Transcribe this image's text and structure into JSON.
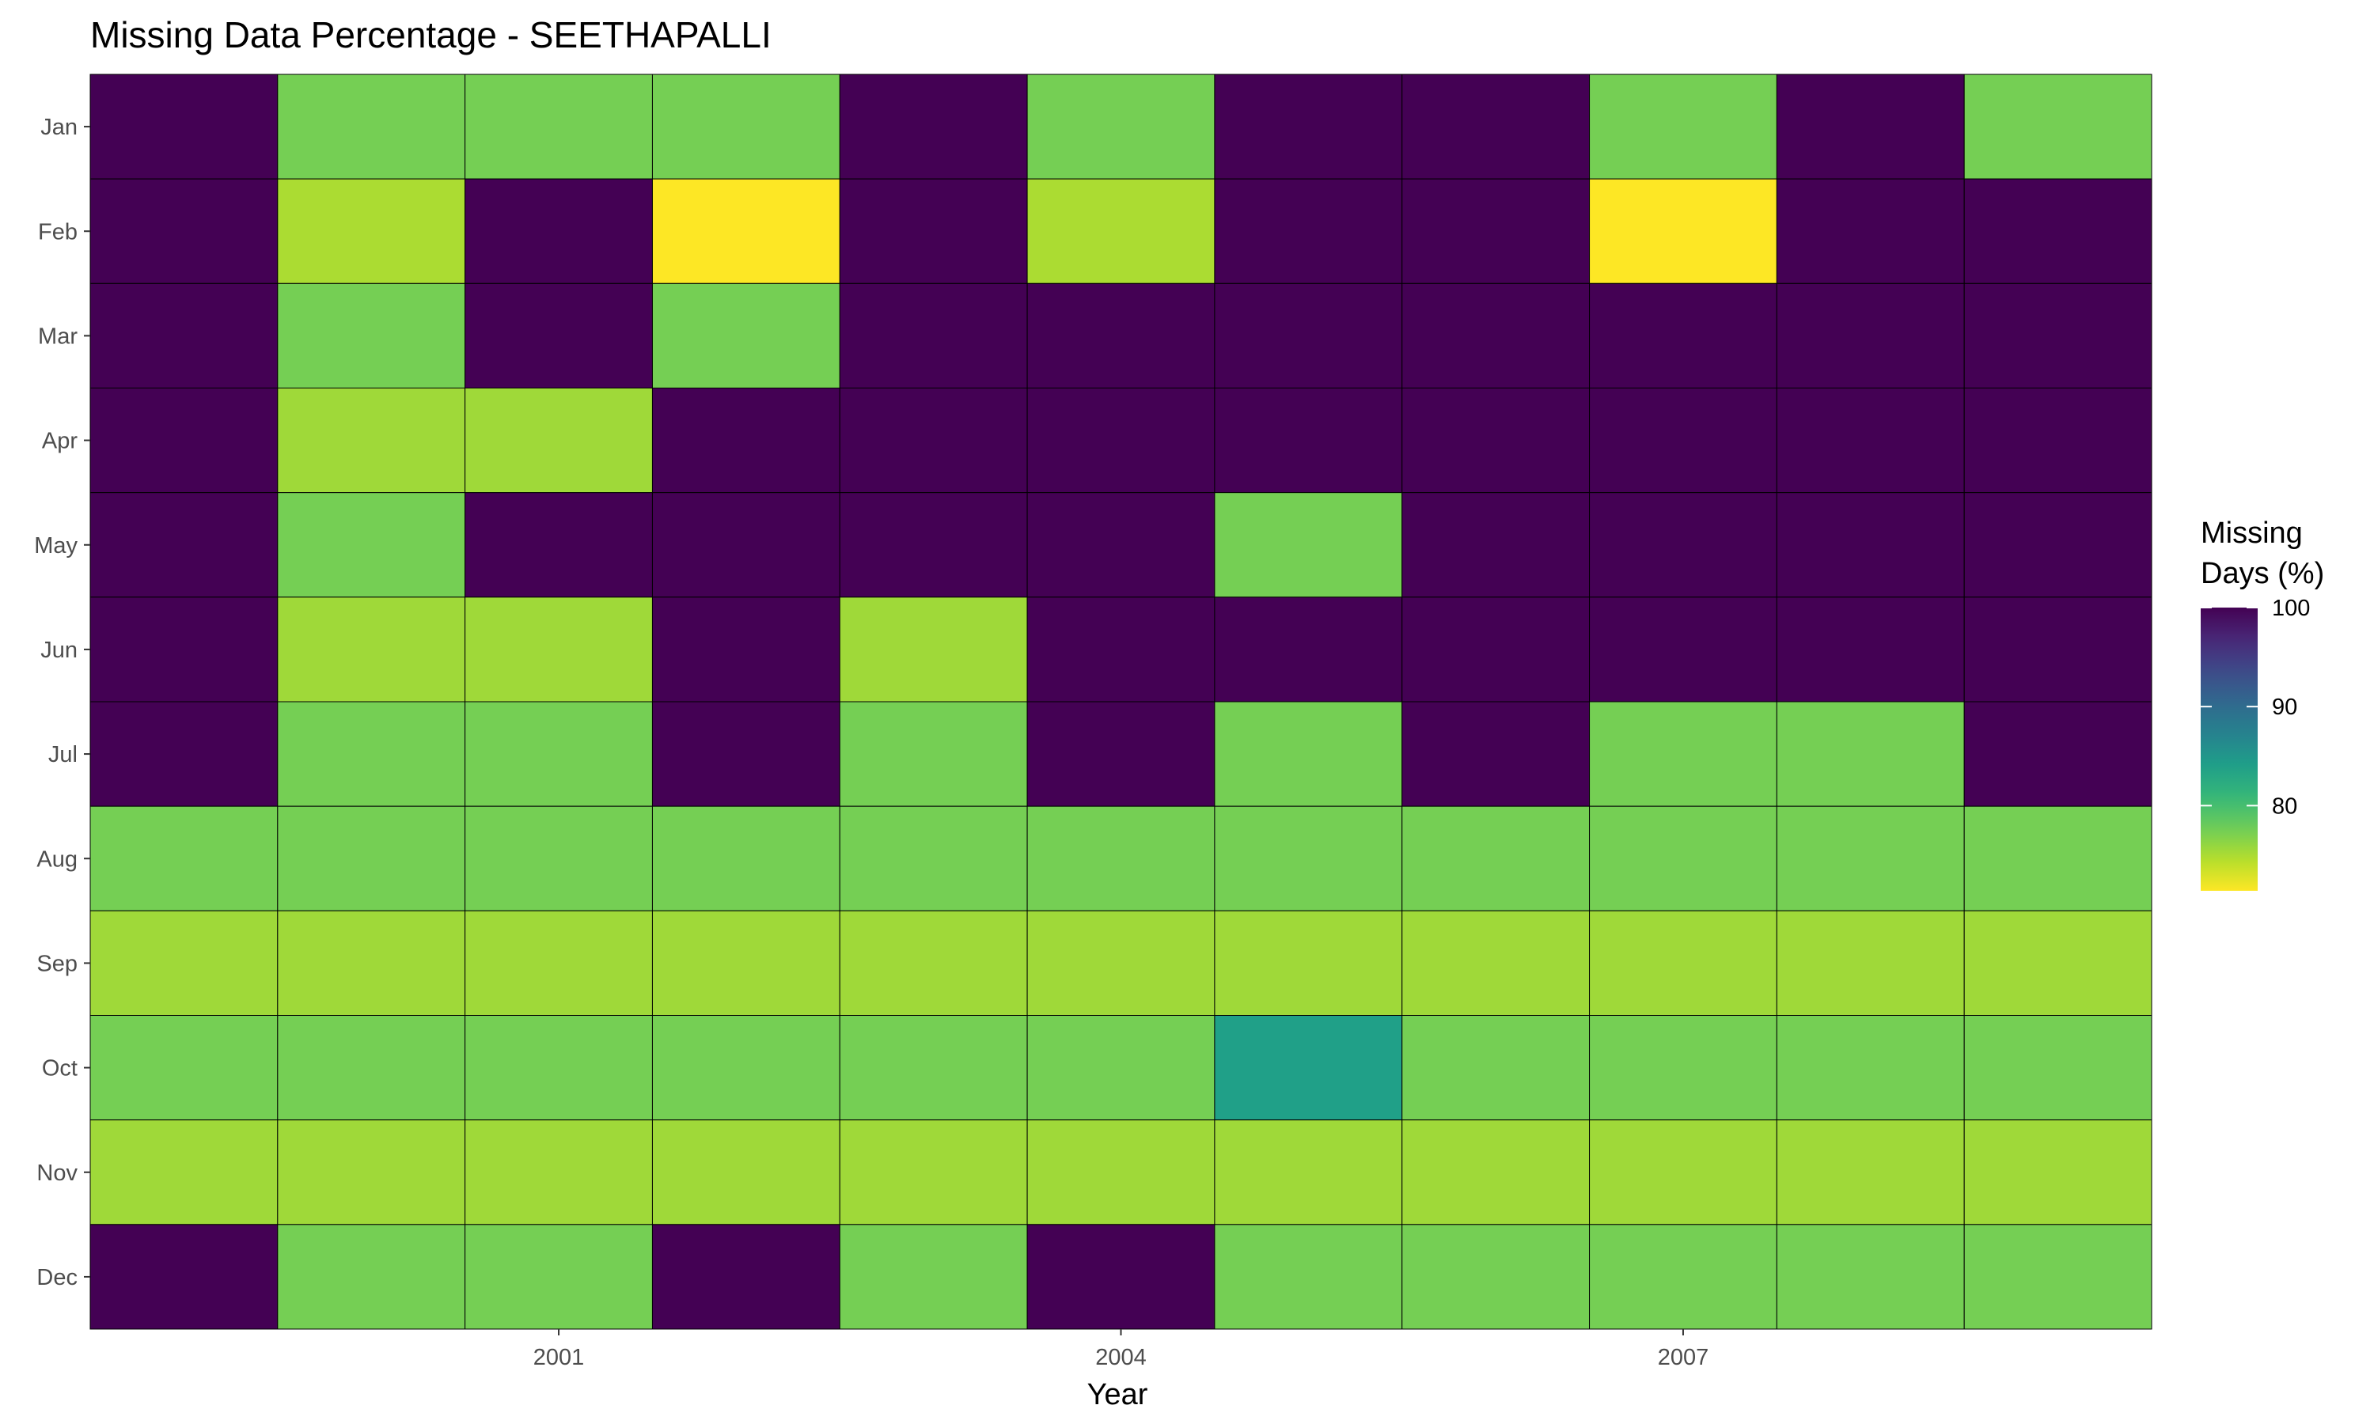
{
  "chart_data": {
    "type": "heatmap",
    "title": "Missing Data Percentage - SEETHAPALLI",
    "xlabel": "Year",
    "ylabel": "",
    "x": [
      1999,
      2000,
      2001,
      2002,
      2003,
      2004,
      2005,
      2006,
      2007,
      2008,
      2009
    ],
    "x_tick_labels": [
      "2001",
      "2004",
      "2007"
    ],
    "x_tick_values": [
      2001,
      2004,
      2007
    ],
    "y": [
      "Jan",
      "Feb",
      "Mar",
      "Apr",
      "May",
      "Jun",
      "Jul",
      "Aug",
      "Sep",
      "Oct",
      "Nov",
      "Dec"
    ],
    "values": [
      [
        100,
        77.4,
        77.4,
        77.4,
        100,
        77.4,
        100,
        100,
        77.4,
        100,
        77.4
      ],
      [
        100,
        75,
        100,
        71.4,
        100,
        75,
        100,
        100,
        71.4,
        100,
        100
      ],
      [
        100,
        77.4,
        100,
        77.4,
        100,
        100,
        100,
        100,
        100,
        100,
        100
      ],
      [
        100,
        75.5,
        75.5,
        100,
        100,
        100,
        100,
        100,
        100,
        100,
        100
      ],
      [
        100,
        77.4,
        100,
        100,
        100,
        100,
        77.4,
        100,
        100,
        100,
        100
      ],
      [
        100,
        75.5,
        75.5,
        100,
        75.5,
        100,
        100,
        100,
        100,
        100,
        100
      ],
      [
        100,
        77.4,
        77.4,
        100,
        77.4,
        100,
        77.4,
        100,
        77.4,
        77.4,
        100
      ],
      [
        77.4,
        77.4,
        77.4,
        77.4,
        77.4,
        77.4,
        77.4,
        77.4,
        77.4,
        77.4,
        77.4
      ],
      [
        75.5,
        75.5,
        75.5,
        75.5,
        75.5,
        75.5,
        75.5,
        75.5,
        75.5,
        75.5,
        75.5
      ],
      [
        77.4,
        77.4,
        77.4,
        77.4,
        77.4,
        77.4,
        83.9,
        77.4,
        77.4,
        77.4,
        77.4
      ],
      [
        75.5,
        75.5,
        75.5,
        75.5,
        75.5,
        75.5,
        75.5,
        75.5,
        75.5,
        75.5,
        75.5
      ],
      [
        100,
        77.4,
        77.4,
        100,
        77.4,
        100,
        77.4,
        77.4,
        77.4,
        77.4,
        77.4
      ]
    ],
    "legend": {
      "title_line1": "Missing",
      "title_line2": "Days (%)",
      "ticks": [
        "80",
        "90",
        "100"
      ],
      "tick_values": [
        80,
        90,
        100
      ],
      "range": [
        71.4,
        100
      ],
      "placement": "right"
    },
    "colorscale": "viridis-reversed",
    "grid": false
  }
}
